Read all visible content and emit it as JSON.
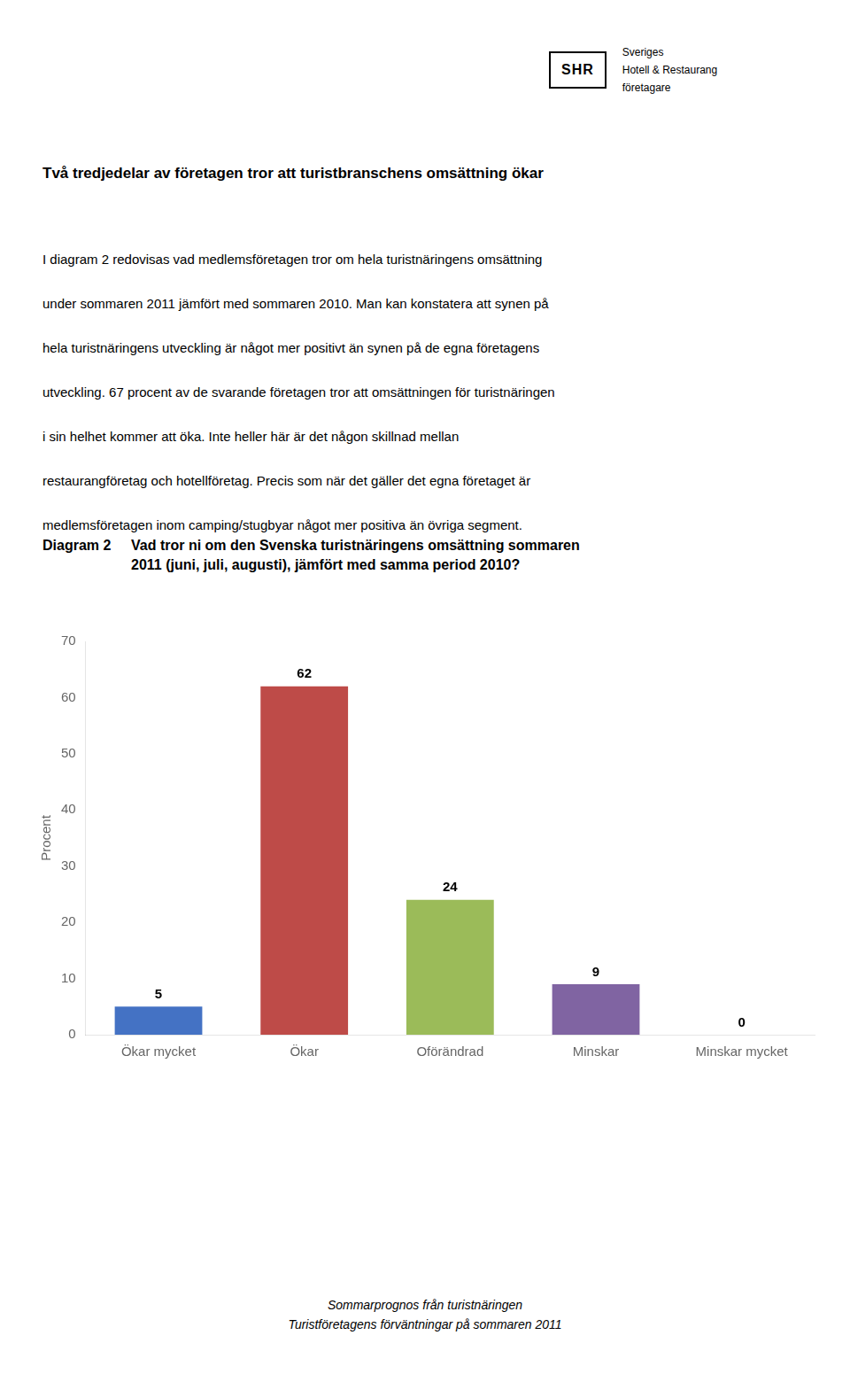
{
  "chart_data": {
    "type": "bar",
    "title": "Diagram 2",
    "subtitle": "Vad tror ni om den Svenska turistnäringens omsättning sommaren\n2011 (juni, juli, augusti), jämfört med samma period 2010?",
    "categories": [
      "Ökar mycket",
      "Ökar",
      "Oförändrad",
      "Minskar",
      "Minskar mycket"
    ],
    "values": [
      5,
      62,
      24,
      9,
      0
    ],
    "colors": [
      "#4472C4",
      "#BE4B48",
      "#9BBB59",
      "#8064A2",
      "#F79646"
    ],
    "ylabel": "Procent",
    "ylim": [
      0,
      70
    ],
    "yticks": [
      0,
      10,
      20,
      30,
      40,
      50,
      60,
      70
    ],
    "grid": false,
    "data_labels": true,
    "annotations": [
      "SHR",
      "Sveriges",
      "Hotell & Restaurang",
      "företagare",
      "Två tredjedelar av företagen tror att turistbranschens omsättning ökar",
      "I diagram 2 redovisas vad medlemsföretagen tror om hela turistnäringens omsättning",
      "under sommaren 2011 jämfört med sommaren 2010. Man kan konstatera att synen på",
      "hela turistnäringens utveckling är något mer positivt än synen på de egna företagens",
      "utveckling. 67 procent av de svarande företagen tror att omsättningen för turistnäringen",
      "i sin helhet kommer att öka. Inte heller här är det någon skillnad mellan",
      "restaurangföretag och hotellföretag. Precis som när det gäller det egna företaget är",
      "medlemsföretagen inom camping/stugbyar något mer positiva än övriga segment.",
      "Sommarprognos från turistnäringen",
      "Turistföretagens förväntningar på sommaren 2011"
    ]
  }
}
